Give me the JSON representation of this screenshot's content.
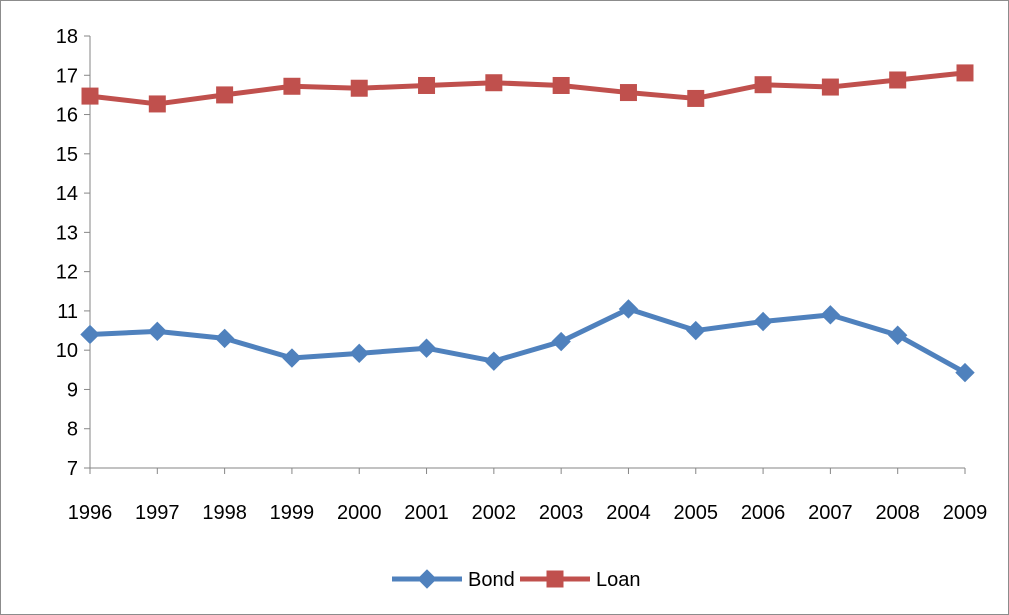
{
  "chart_data": {
    "type": "line",
    "title": "",
    "xlabel": "",
    "ylabel": "",
    "categories": [
      "1996",
      "1997",
      "1998",
      "1999",
      "2000",
      "2001",
      "2002",
      "2003",
      "2004",
      "2005",
      "2006",
      "2007",
      "2008",
      "2009"
    ],
    "ylim": [
      7,
      18
    ],
    "yticks": [
      7,
      8,
      9,
      10,
      11,
      12,
      13,
      14,
      15,
      16,
      17,
      18
    ],
    "grid": false,
    "legend_position": "bottom",
    "series": [
      {
        "name": "Bond",
        "color": "#4f81bd",
        "marker": "diamond",
        "values": [
          10.4,
          10.48,
          10.3,
          9.8,
          9.92,
          10.05,
          9.72,
          10.22,
          11.05,
          10.5,
          10.73,
          10.9,
          10.38,
          9.43
        ]
      },
      {
        "name": "Loan",
        "color": "#c0504d",
        "marker": "square",
        "values": [
          16.47,
          16.27,
          16.5,
          16.72,
          16.67,
          16.74,
          16.81,
          16.74,
          16.56,
          16.41,
          16.76,
          16.7,
          16.88,
          17.06
        ]
      }
    ]
  }
}
